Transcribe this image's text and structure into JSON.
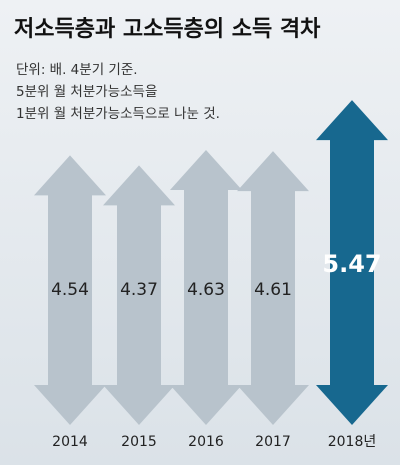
{
  "chart_data": {
    "type": "arrow-bar",
    "title": "저소득층과 고소득층의 소득 격차",
    "subtitle": [
      "단위: 배. 4분기 기준.",
      "5분위 월 처분가능소득을",
      "1분위 월 처분가능소득으로 나눈 것."
    ],
    "categories": [
      "2014",
      "2015",
      "2016",
      "2017",
      "2018년"
    ],
    "values": [
      4.54,
      4.37,
      4.63,
      4.61,
      5.47
    ],
    "colors": [
      "#b8c3cc",
      "#b8c3cc",
      "#b8c3cc",
      "#b8c3cc",
      "#17688f"
    ],
    "label_colors": [
      "#222222",
      "#222222",
      "#222222",
      "#222222",
      "#ffffff"
    ]
  }
}
